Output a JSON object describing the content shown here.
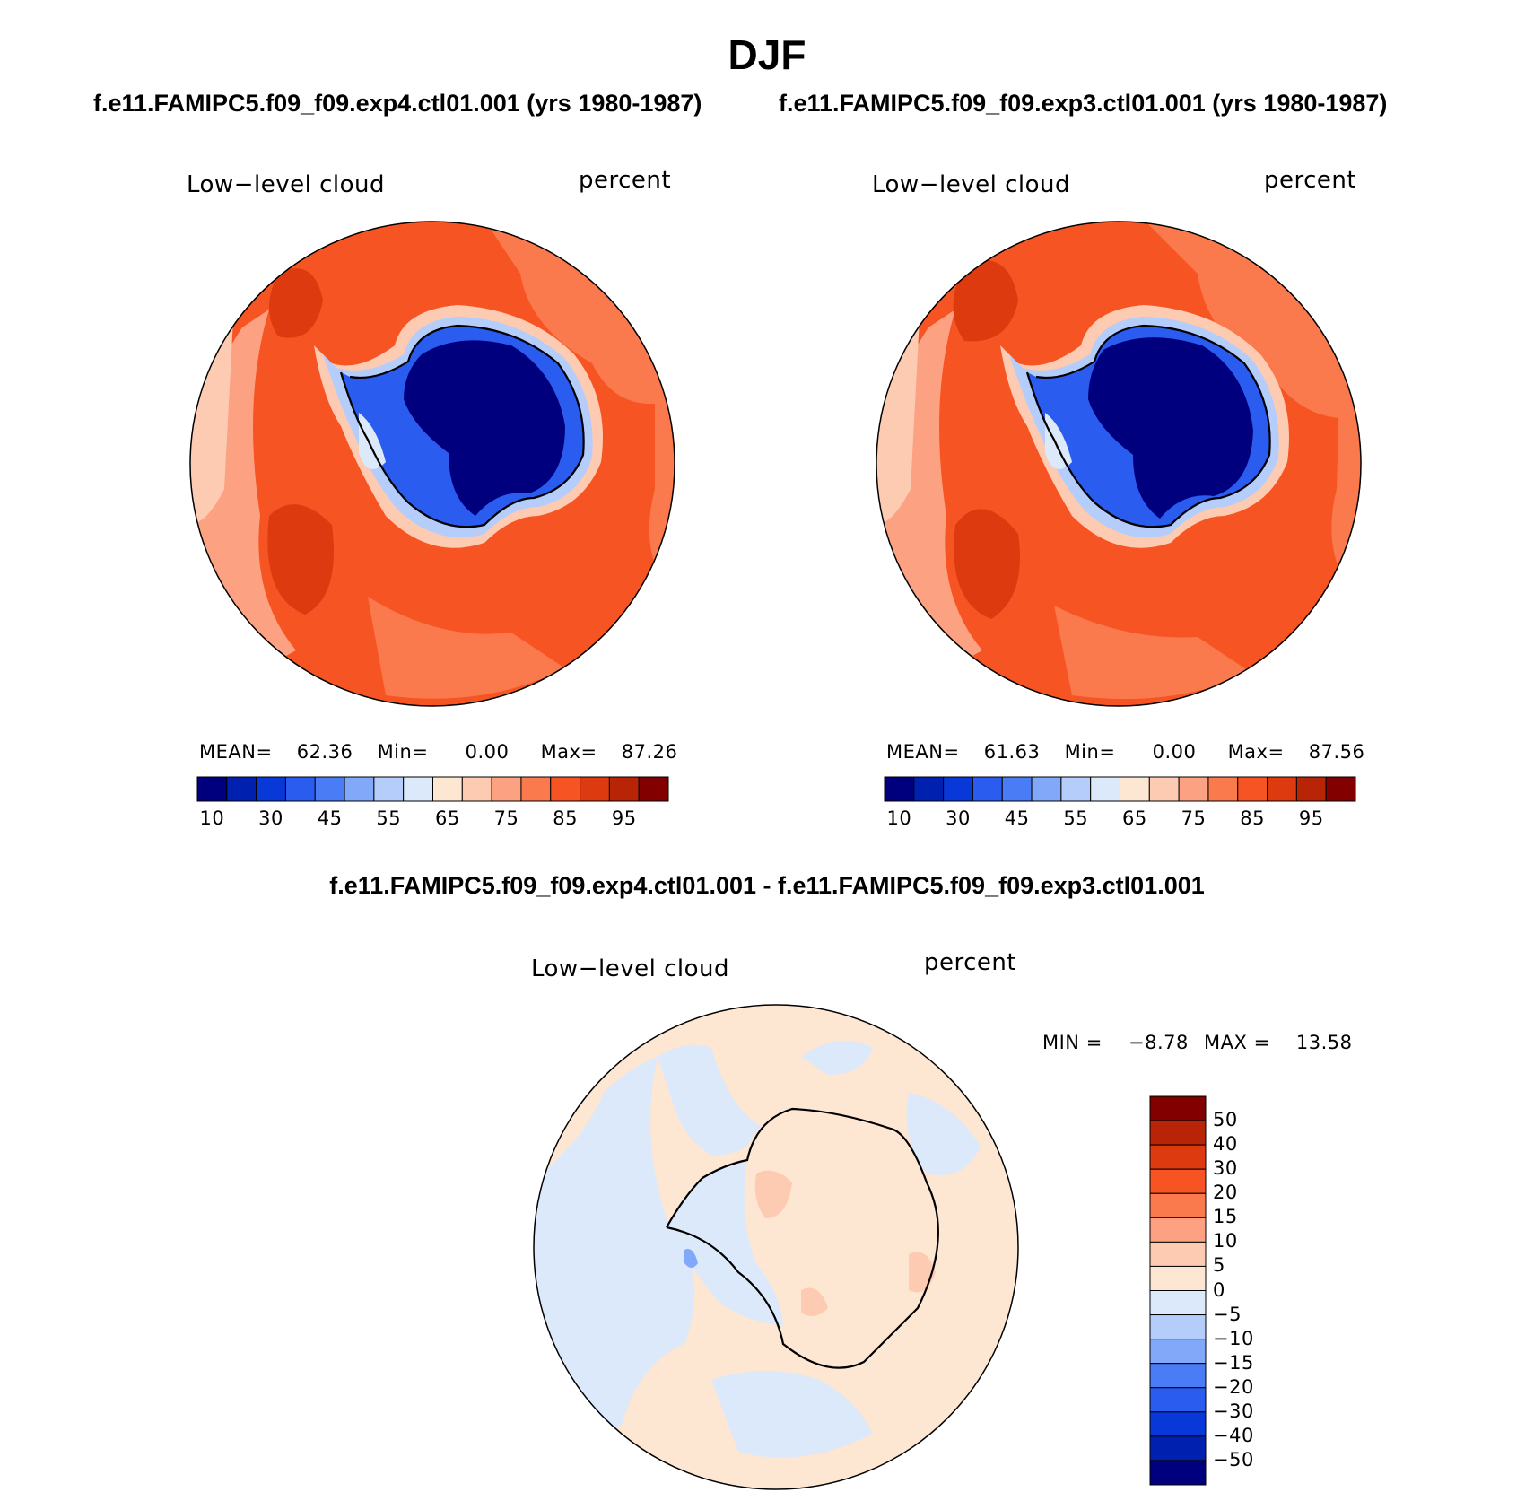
{
  "title": "DJF",
  "panels": [
    {
      "case_title": "f.e11.FAMIPC5.f09_f09.exp4.ctl01.001 (yrs 1980-1987)",
      "left_label": "Low−level cloud",
      "right_label": "percent",
      "stats": {
        "mean_label": "MEAN=",
        "mean": "62.36",
        "min_label": "Min=",
        "min": "0.00",
        "max_label": "Max=",
        "max": "87.26"
      }
    },
    {
      "case_title": "f.e11.FAMIPC5.f09_f09.exp3.ctl01.001 (yrs 1980-1987)",
      "left_label": "Low−level cloud",
      "right_label": "percent",
      "stats": {
        "mean_label": "MEAN=",
        "mean": "61.63",
        "min_label": "Min=",
        "min": "0.00",
        "max_label": "Max=",
        "max": "87.56"
      }
    }
  ],
  "diff_panel": {
    "title": "f.e11.FAMIPC5.f09_f09.exp4.ctl01.001 - f.e11.FAMIPC5.f09_f09.exp3.ctl01.001",
    "left_label": "Low−level cloud",
    "right_label": "percent",
    "stats": {
      "min_label": "MIN =",
      "min": "−8.78",
      "max_label": "MAX =",
      "max": "13.58"
    }
  },
  "colorbar_main": {
    "colors": [
      "#00007f",
      "#0020b0",
      "#0838d8",
      "#2a5cf0",
      "#4a7cf5",
      "#82a8fa",
      "#b4cdfa",
      "#dce9fb",
      "#fde6d2",
      "#fdcbb2",
      "#fca283",
      "#fa7a4d",
      "#f75423",
      "#dd3a10",
      "#b82406",
      "#820000"
    ],
    "tick_labels": [
      "10",
      "30",
      "45",
      "55",
      "65",
      "75",
      "85",
      "95"
    ]
  },
  "colorbar_diff": {
    "colors": [
      "#00007f",
      "#0020b0",
      "#0838d8",
      "#2a5cf0",
      "#4a7cf5",
      "#82a8fa",
      "#b4cdfa",
      "#dce9fb",
      "#fde6d2",
      "#fdcbb2",
      "#fca283",
      "#fa7a4d",
      "#f75423",
      "#dd3a10",
      "#b82406",
      "#820000"
    ],
    "tick_labels": [
      "50",
      "40",
      "30",
      "20",
      "15",
      "10",
      "5",
      "0",
      "−5",
      "−10",
      "−15",
      "−20",
      "−30",
      "−40",
      "−50"
    ]
  },
  "map_colors": {
    "ocean_high": "#f75423",
    "ocean_mid": "#fa7a4d",
    "ocean_low": "#fca283",
    "ocean_edge": "#fdcbb2",
    "ocean_dark": "#dd3a10",
    "land_deep": "#00007f",
    "land_mid": "#0838d8",
    "land_light": "#4a7cf5",
    "land_pale": "#b4cdfa",
    "diff_pos": "#fde6d2",
    "diff_neg": "#dce9fb",
    "diff_pos2": "#fdcbb2",
    "diff_neg2": "#b4cdfa"
  }
}
